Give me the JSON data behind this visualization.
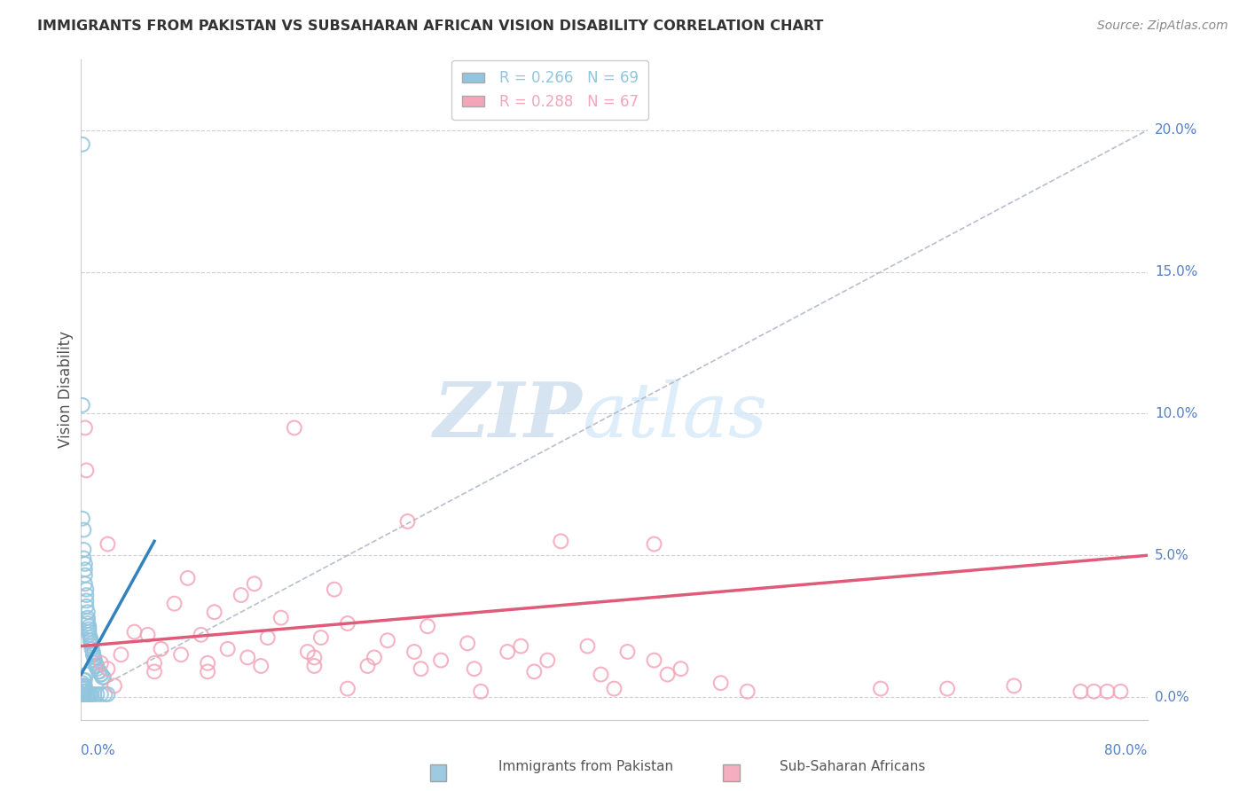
{
  "title": "IMMIGRANTS FROM PAKISTAN VS SUBSAHARAN AFRICAN VISION DISABILITY CORRELATION CHART",
  "source": "Source: ZipAtlas.com",
  "ylabel": "Vision Disability",
  "ylabel_right_ticks": [
    "0.0%",
    "5.0%",
    "10.0%",
    "15.0%",
    "20.0%"
  ],
  "ylabel_right_vals": [
    0.0,
    0.05,
    0.1,
    0.15,
    0.2
  ],
  "xlim": [
    0.0,
    0.8
  ],
  "ylim": [
    -0.008,
    0.225
  ],
  "pakistan_color": "#92c5de",
  "pakistan_line_color": "#3182bd",
  "subsaharan_color": "#f4a5b8",
  "subsaharan_line_color": "#e05a7a",
  "background_color": "#ffffff",
  "grid_color": "#d0d0d0",
  "pakistan_scatter": [
    [
      0.001,
      0.195
    ],
    [
      0.001,
      0.103
    ],
    [
      0.001,
      0.063
    ],
    [
      0.002,
      0.059
    ],
    [
      0.002,
      0.052
    ],
    [
      0.002,
      0.049
    ],
    [
      0.003,
      0.047
    ],
    [
      0.003,
      0.045
    ],
    [
      0.003,
      0.043
    ],
    [
      0.003,
      0.04
    ],
    [
      0.004,
      0.038
    ],
    [
      0.004,
      0.036
    ],
    [
      0.004,
      0.034
    ],
    [
      0.004,
      0.032
    ],
    [
      0.005,
      0.03
    ],
    [
      0.005,
      0.028
    ],
    [
      0.005,
      0.027
    ],
    [
      0.005,
      0.026
    ],
    [
      0.006,
      0.025
    ],
    [
      0.006,
      0.024
    ],
    [
      0.006,
      0.023
    ],
    [
      0.006,
      0.022
    ],
    [
      0.007,
      0.021
    ],
    [
      0.007,
      0.02
    ],
    [
      0.007,
      0.02
    ],
    [
      0.008,
      0.019
    ],
    [
      0.008,
      0.018
    ],
    [
      0.008,
      0.017
    ],
    [
      0.009,
      0.016
    ],
    [
      0.009,
      0.015
    ],
    [
      0.009,
      0.015
    ],
    [
      0.01,
      0.014
    ],
    [
      0.01,
      0.013
    ],
    [
      0.011,
      0.012
    ],
    [
      0.011,
      0.011
    ],
    [
      0.012,
      0.011
    ],
    [
      0.012,
      0.01
    ],
    [
      0.013,
      0.009
    ],
    [
      0.014,
      0.009
    ],
    [
      0.015,
      0.008
    ],
    [
      0.015,
      0.008
    ],
    [
      0.016,
      0.007
    ],
    [
      0.017,
      0.007
    ],
    [
      0.001,
      0.005
    ],
    [
      0.001,
      0.004
    ],
    [
      0.001,
      0.003
    ],
    [
      0.002,
      0.003
    ],
    [
      0.002,
      0.002
    ],
    [
      0.002,
      0.002
    ],
    [
      0.003,
      0.002
    ],
    [
      0.003,
      0.001
    ],
    [
      0.004,
      0.001
    ],
    [
      0.005,
      0.001
    ],
    [
      0.006,
      0.001
    ],
    [
      0.007,
      0.001
    ],
    [
      0.008,
      0.001
    ],
    [
      0.01,
      0.001
    ],
    [
      0.012,
      0.001
    ],
    [
      0.015,
      0.001
    ],
    [
      0.018,
      0.001
    ],
    [
      0.02,
      0.001
    ],
    [
      0.001,
      0.001
    ],
    [
      0.001,
      0.002
    ],
    [
      0.002,
      0.004
    ],
    [
      0.003,
      0.006
    ],
    [
      0.004,
      0.008
    ],
    [
      0.003,
      0.003
    ],
    [
      0.002,
      0.006
    ],
    [
      0.003,
      0.004
    ],
    [
      0.002,
      0.001
    ]
  ],
  "subsaharan_scatter": [
    [
      0.003,
      0.095
    ],
    [
      0.004,
      0.08
    ],
    [
      0.16,
      0.095
    ],
    [
      0.02,
      0.054
    ],
    [
      0.43,
      0.054
    ],
    [
      0.245,
      0.062
    ],
    [
      0.36,
      0.055
    ],
    [
      0.08,
      0.042
    ],
    [
      0.13,
      0.04
    ],
    [
      0.19,
      0.038
    ],
    [
      0.12,
      0.036
    ],
    [
      0.07,
      0.033
    ],
    [
      0.1,
      0.03
    ],
    [
      0.15,
      0.028
    ],
    [
      0.2,
      0.026
    ],
    [
      0.26,
      0.025
    ],
    [
      0.04,
      0.023
    ],
    [
      0.05,
      0.022
    ],
    [
      0.09,
      0.022
    ],
    [
      0.14,
      0.021
    ],
    [
      0.18,
      0.021
    ],
    [
      0.23,
      0.02
    ],
    [
      0.29,
      0.019
    ],
    [
      0.33,
      0.018
    ],
    [
      0.38,
      0.018
    ],
    [
      0.06,
      0.017
    ],
    [
      0.11,
      0.017
    ],
    [
      0.17,
      0.016
    ],
    [
      0.25,
      0.016
    ],
    [
      0.32,
      0.016
    ],
    [
      0.41,
      0.016
    ],
    [
      0.03,
      0.015
    ],
    [
      0.075,
      0.015
    ],
    [
      0.125,
      0.014
    ],
    [
      0.175,
      0.014
    ],
    [
      0.22,
      0.014
    ],
    [
      0.27,
      0.013
    ],
    [
      0.35,
      0.013
    ],
    [
      0.43,
      0.013
    ],
    [
      0.015,
      0.012
    ],
    [
      0.055,
      0.012
    ],
    [
      0.095,
      0.012
    ],
    [
      0.135,
      0.011
    ],
    [
      0.175,
      0.011
    ],
    [
      0.215,
      0.011
    ],
    [
      0.255,
      0.01
    ],
    [
      0.295,
      0.01
    ],
    [
      0.02,
      0.01
    ],
    [
      0.45,
      0.01
    ],
    [
      0.055,
      0.009
    ],
    [
      0.095,
      0.009
    ],
    [
      0.34,
      0.009
    ],
    [
      0.39,
      0.008
    ],
    [
      0.44,
      0.008
    ],
    [
      0.025,
      0.004
    ],
    [
      0.2,
      0.003
    ],
    [
      0.3,
      0.002
    ],
    [
      0.4,
      0.003
    ],
    [
      0.48,
      0.005
    ],
    [
      0.5,
      0.002
    ],
    [
      0.6,
      0.003
    ],
    [
      0.65,
      0.003
    ],
    [
      0.7,
      0.004
    ],
    [
      0.75,
      0.002
    ],
    [
      0.76,
      0.002
    ],
    [
      0.77,
      0.002
    ],
    [
      0.78,
      0.002
    ]
  ],
  "pk_line_x0": 0.0,
  "pk_line_x1": 0.055,
  "pk_line_y0": 0.008,
  "pk_line_y1": 0.055,
  "ss_line_x0": 0.0,
  "ss_line_x1": 0.8,
  "ss_line_y0": 0.018,
  "ss_line_y1": 0.05
}
